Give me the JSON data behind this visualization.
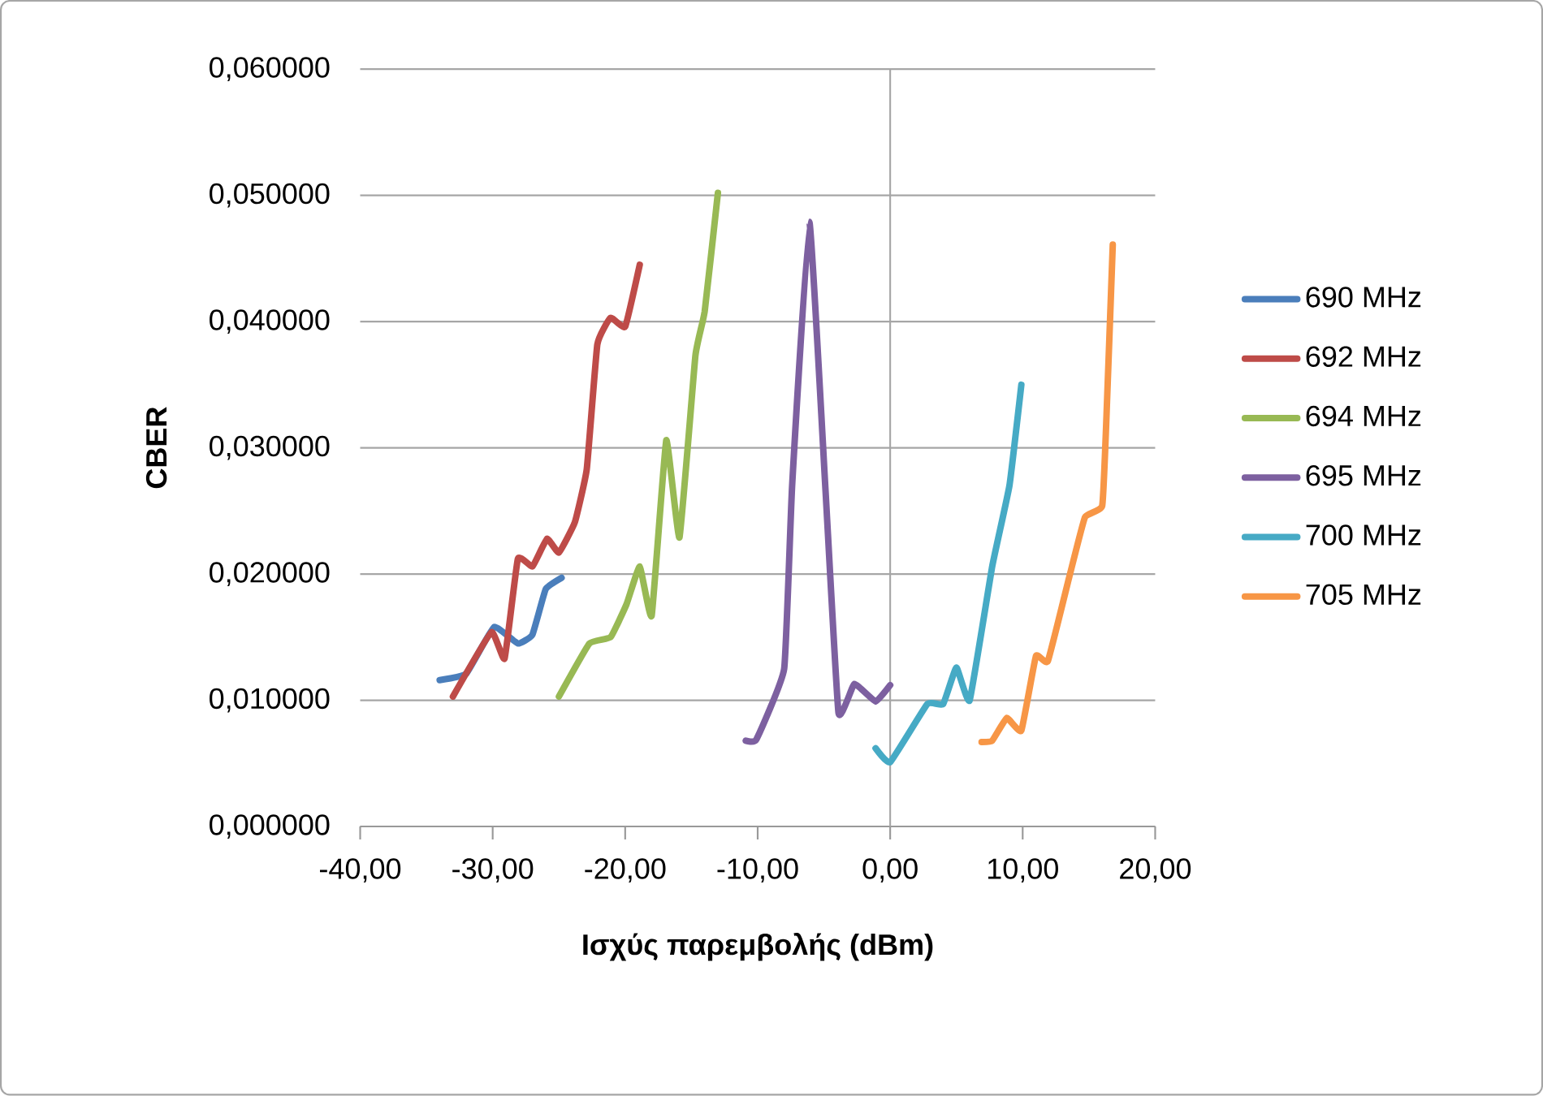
{
  "chart_data": {
    "type": "line",
    "xlabel": "Ισχύς παρεμβολής (dBm)",
    "ylabel": "CBER",
    "xlim": [
      -40,
      20
    ],
    "ylim": [
      0,
      0.06
    ],
    "xticks": [
      {
        "value": -40,
        "label": "-40,00"
      },
      {
        "value": -30,
        "label": "-30,00"
      },
      {
        "value": -20,
        "label": "-20,00"
      },
      {
        "value": -10,
        "label": "-10,00"
      },
      {
        "value": 0,
        "label": "0,00"
      },
      {
        "value": 10,
        "label": "10,00"
      },
      {
        "value": 20,
        "label": "20,00"
      }
    ],
    "yticks": [
      {
        "value": 0,
        "label": "0,000000"
      },
      {
        "value": 0.01,
        "label": "0,010000"
      },
      {
        "value": 0.02,
        "label": "0,020000"
      },
      {
        "value": 0.03,
        "label": "0,030000"
      },
      {
        "value": 0.04,
        "label": "0,040000"
      },
      {
        "value": 0.05,
        "label": "0,050000"
      },
      {
        "value": 0.06,
        "label": "0,060000"
      }
    ],
    "grid": "y",
    "ref_lines": [
      {
        "axis": "x",
        "value": 0,
        "color": "#a6a6a6"
      }
    ],
    "legend": "right",
    "marker": "none",
    "line_style": "solid",
    "series": [
      {
        "name": "690 MHz",
        "color": "#4a7ebb",
        "x": [
          -34.0,
          -32.0,
          -29.9,
          -28.1,
          -27.0,
          -26.0,
          -24.8
        ],
        "values": [
          0.0116,
          0.0121,
          0.0158,
          0.0145,
          0.0152,
          0.0188,
          0.0197
        ]
      },
      {
        "name": "692 MHz",
        "color": "#be4b48",
        "x": [
          -33.0,
          -30.1,
          -29.1,
          -28.1,
          -27.0,
          -25.9,
          -25.0,
          -23.8,
          -22.9,
          -22.1,
          -21.1,
          -20.0,
          -18.9
        ],
        "values": [
          0.0103,
          0.0154,
          0.0133,
          0.0212,
          0.0206,
          0.0228,
          0.0217,
          0.0241,
          0.0283,
          0.0382,
          0.0403,
          0.0396,
          0.0445
        ]
      },
      {
        "name": "694 MHz",
        "color": "#98b954",
        "x": [
          -25.0,
          -22.7,
          -21.1,
          -19.9,
          -18.9,
          -18.0,
          -16.9,
          -15.9,
          -14.7,
          -14.0,
          -13.0
        ],
        "values": [
          0.0103,
          0.0145,
          0.015,
          0.0176,
          0.0206,
          0.0167,
          0.0306,
          0.0229,
          0.0373,
          0.0408,
          0.0502
        ]
      },
      {
        "name": "695 MHz",
        "color": "#7d60a0",
        "x": [
          -10.9,
          -10.1,
          -8.0,
          -7.4,
          -6.1,
          -4.9,
          -3.9,
          -2.7,
          -1.1,
          0.0
        ],
        "values": [
          0.0068,
          0.0069,
          0.0125,
          0.027,
          0.0479,
          0.027,
          0.009,
          0.0113,
          0.0099,
          0.0112
        ]
      },
      {
        "name": "700 MHz",
        "color": "#46aac5",
        "x": [
          -1.1,
          0.0,
          2.8,
          4.0,
          5.0,
          6.0,
          7.7,
          9.0,
          9.9
        ],
        "values": [
          0.0062,
          0.0051,
          0.0097,
          0.0097,
          0.0126,
          0.01,
          0.0206,
          0.027,
          0.035
        ]
      },
      {
        "name": "705 MHz",
        "color": "#f79646",
        "x": [
          6.9,
          7.7,
          8.8,
          9.9,
          11.0,
          11.9,
          13.5,
          14.7,
          16.0,
          16.3,
          16.8
        ],
        "values": [
          0.0067,
          0.0068,
          0.0086,
          0.0076,
          0.0135,
          0.0131,
          0.0197,
          0.0245,
          0.0254,
          0.0318,
          0.0461
        ]
      }
    ]
  }
}
